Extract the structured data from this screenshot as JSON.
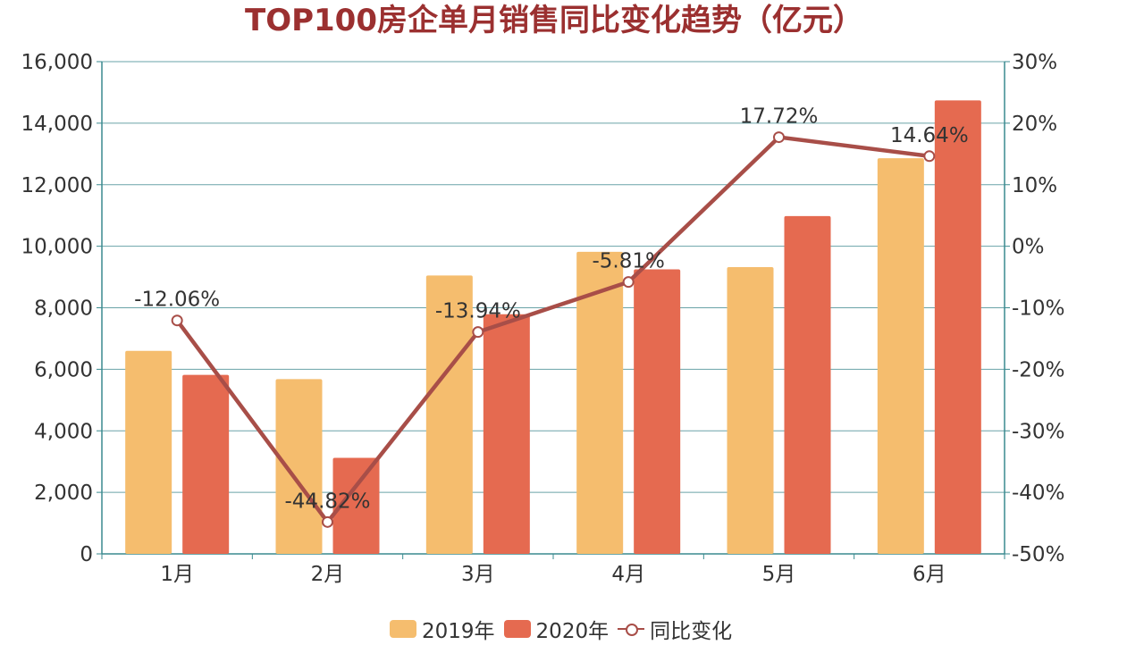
{
  "title": "TOP100房企单月销售同比变化趋势（亿元）",
  "colors": {
    "title": "#9b3030",
    "bar2019": "#f5bd6e",
    "bar2020": "#e56a50",
    "line": "#a84e48",
    "grid": "#6aa3a8",
    "axis": "#3a8a8f",
    "text": "#333333"
  },
  "legend": {
    "items": [
      {
        "label": "2019年",
        "kind": "bar"
      },
      {
        "label": "2020年",
        "kind": "bar"
      },
      {
        "label": "同比变化",
        "kind": "line"
      }
    ]
  },
  "chart_data": {
    "type": "bar",
    "title": "TOP100房企单月销售同比变化趋势（亿元）",
    "categories": [
      "1月",
      "2月",
      "3月",
      "4月",
      "5月",
      "6月"
    ],
    "series": [
      {
        "name": "2019年",
        "type": "bar",
        "axis": "left",
        "values": [
          6600,
          5680,
          9050,
          9820,
          9320,
          12860
        ]
      },
      {
        "name": "2020年",
        "type": "bar",
        "axis": "left",
        "values": [
          5820,
          3120,
          7790,
          9250,
          10980,
          14740
        ]
      },
      {
        "name": "同比变化",
        "type": "line",
        "axis": "right",
        "values": [
          -12.06,
          -44.82,
          -13.94,
          -5.81,
          17.72,
          14.64
        ],
        "labels": [
          "-12.06%",
          "-44.82%",
          "-13.94%",
          "-5.81%",
          "17.72%",
          "14.64%"
        ]
      }
    ],
    "y_left": {
      "min": 0,
      "max": 16000,
      "ticks": [
        0,
        2000,
        4000,
        6000,
        8000,
        10000,
        12000,
        14000,
        16000
      ],
      "tick_labels": [
        "0",
        "2,000",
        "4,000",
        "6,000",
        "8,000",
        "10,000",
        "12,000",
        "14,000",
        "16,000"
      ]
    },
    "y_right": {
      "min": -50,
      "max": 30,
      "ticks": [
        -50,
        -40,
        -30,
        -20,
        -10,
        0,
        10,
        20,
        30
      ],
      "tick_labels": [
        "-50%",
        "-40%",
        "-30%",
        "-20%",
        "-10%",
        "0%",
        "10%",
        "20%",
        "30%"
      ]
    },
    "grid": true,
    "legend_position": "bottom"
  }
}
